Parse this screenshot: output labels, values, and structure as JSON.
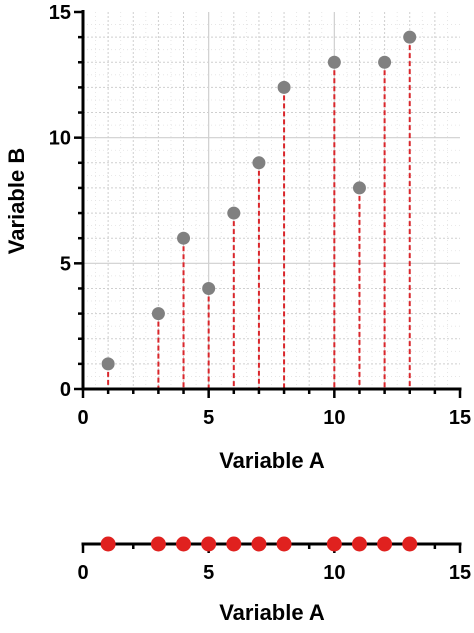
{
  "chart_data": [
    {
      "type": "scatter",
      "title": "",
      "xlabel": "Variable A",
      "ylabel": "Variable B",
      "xlim": [
        0,
        15
      ],
      "ylim": [
        0,
        15
      ],
      "xticks": [
        "0",
        "5",
        "10",
        "15"
      ],
      "yticks": [
        "0",
        "5",
        "10",
        "15"
      ],
      "grid": true,
      "drop_lines": true,
      "x": [
        1,
        3,
        4,
        5,
        6,
        7,
        8,
        10,
        11,
        12,
        13
      ],
      "y": [
        1,
        3,
        6,
        4,
        7,
        9,
        12,
        13,
        8,
        13,
        14
      ],
      "colors": {
        "point": "#808080",
        "drop_line": "#d9262b",
        "grid": "#cfcfcf"
      }
    },
    {
      "type": "scatter",
      "title": "",
      "xlabel": "Variable A",
      "ylabel": "",
      "xlim": [
        0,
        15
      ],
      "xticks": [
        "0",
        "5",
        "10",
        "15"
      ],
      "grid": false,
      "x": [
        1,
        3,
        4,
        5,
        6,
        7,
        8,
        10,
        11,
        12,
        13
      ],
      "colors": {
        "point": "#e0211f"
      }
    }
  ]
}
